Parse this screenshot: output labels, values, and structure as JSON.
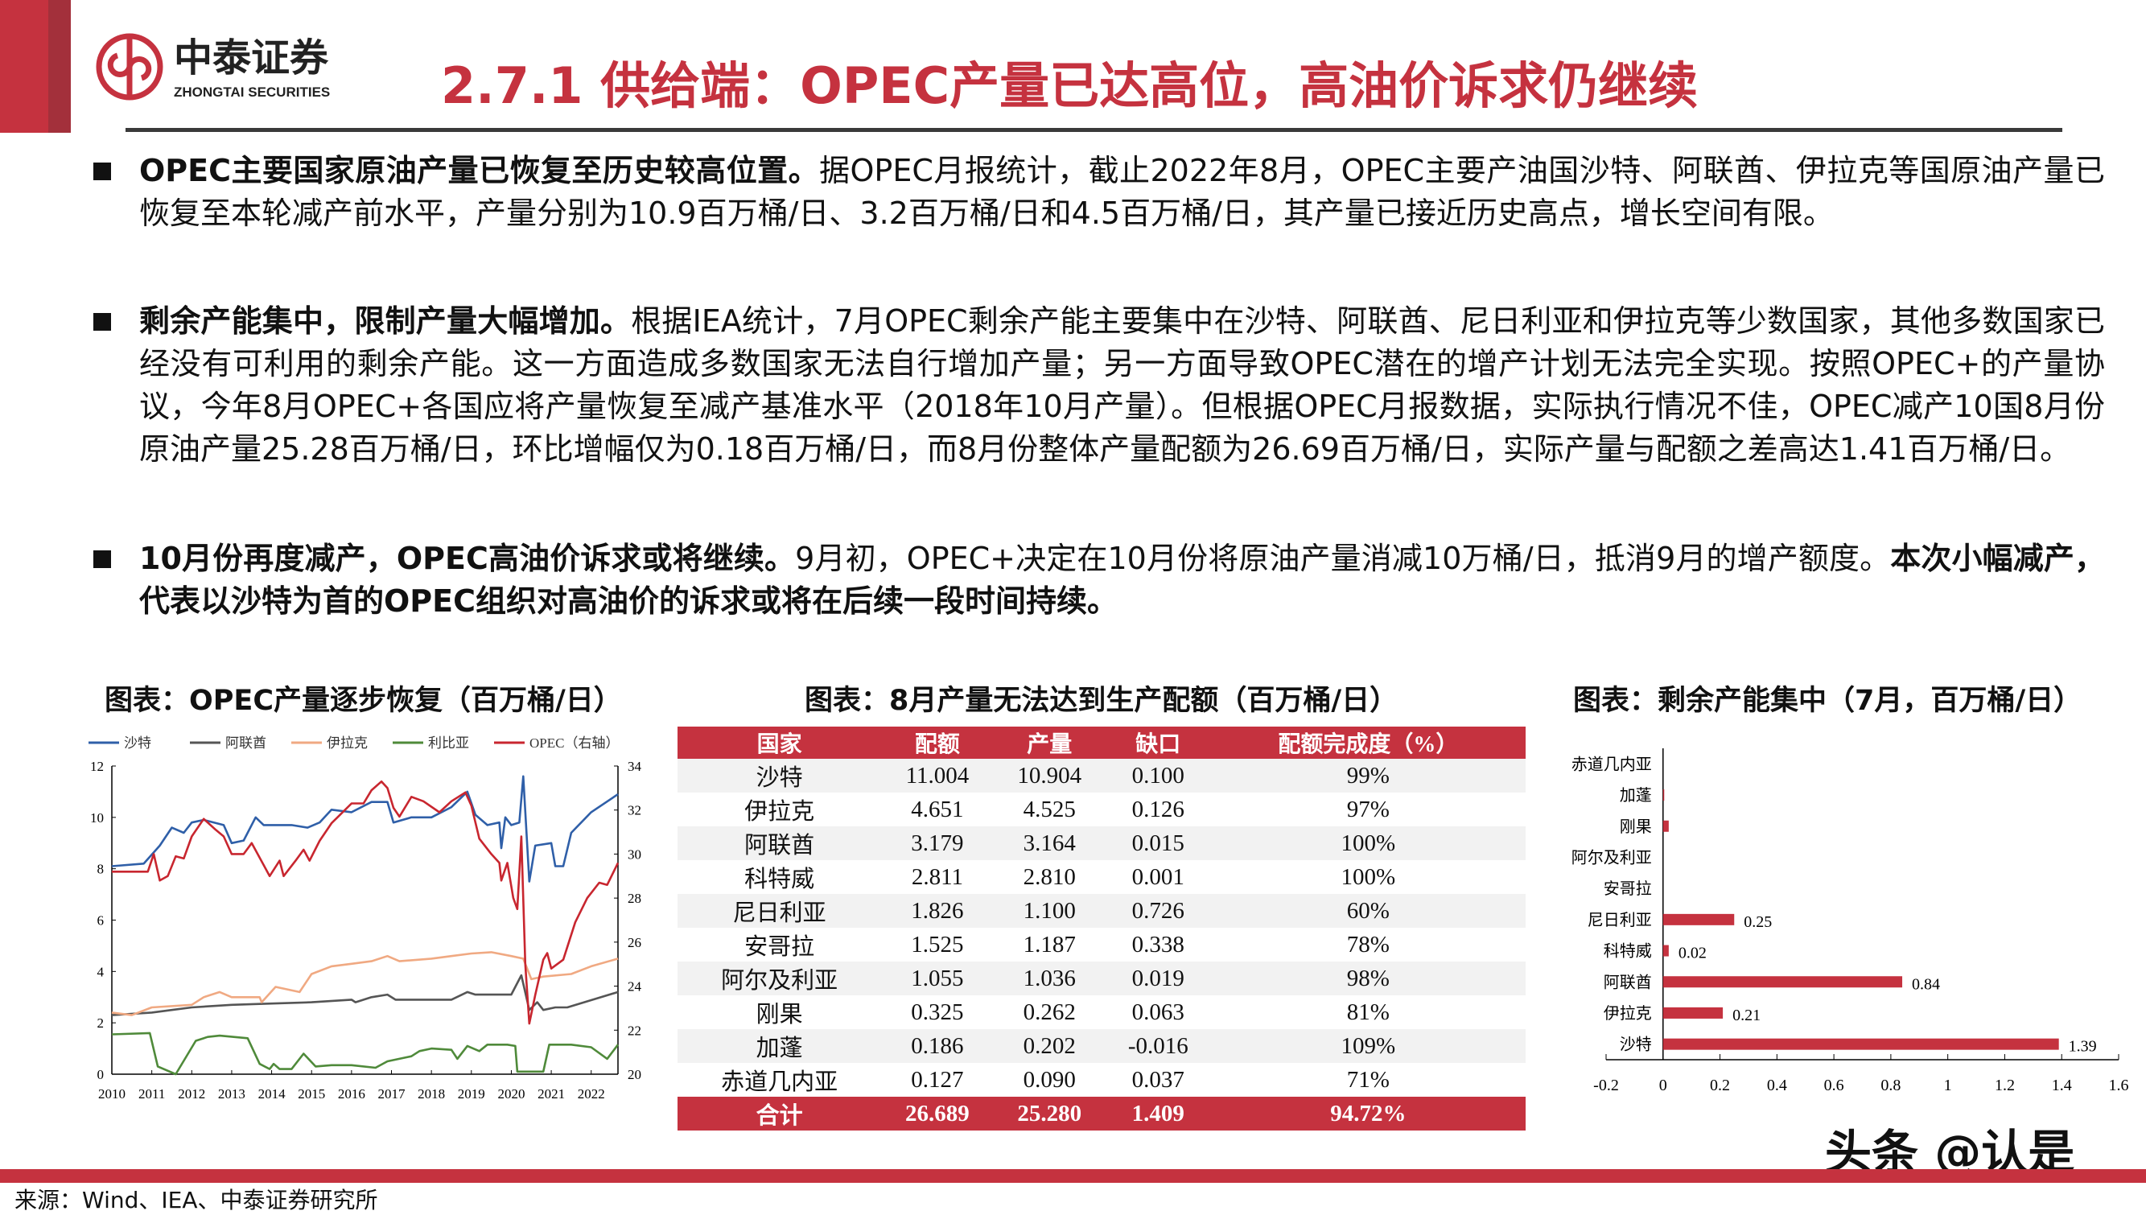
{
  "brand": {
    "name_cn": "中泰证券",
    "name_en": "ZHONGTAI SECURITIES",
    "color": "#c5323f"
  },
  "title": "2.7.1 供给端：OPEC产量已达高位，高油价诉求仍继续",
  "bullets": [
    {
      "lead": "OPEC主要国家原油产量已恢复至历史较高位置。",
      "body": "据OPEC月报统计，截止2022年8月，OPEC主要产油国沙特、阿联酋、伊拉克等国原油产量已恢复至本轮减产前水平，产量分别为10.9百万桶/日、3.2百万桶/日和4.5百万桶/日，其产量已接近历史高点，增长空间有限。"
    },
    {
      "lead": "剩余产能集中，限制产量大幅增加。",
      "body": "根据IEA统计，7月OPEC剩余产能主要集中在沙特、阿联酋、尼日利亚和伊拉克等少数国家，其他多数国家已经没有可利用的剩余产能。这一方面造成多数国家无法自行增加产量；另一方面导致OPEC潜在的增产计划无法完全实现。按照OPEC+的产量协议，今年8月OPEC+各国应将产量恢复至减产基准水平（2018年10月产量）。但根据OPEC月报数据，实际执行情况不佳，OPEC减产10国8月份原油产量25.28百万桶/日，环比增幅仅为0.18百万桶/日，而8月份整体产量配额为26.69百万桶/日，实际产量与配额之差高达1.41百万桶/日。"
    },
    {
      "lead": "10月份再度减产，OPEC高油价诉求或将继续。",
      "body": "9月初，OPEC+决定在10月份将原油产量消减10万桶/日，抵消9月的增产额度。",
      "tail": "本次小幅减产，代表以沙特为首的OPEC组织对高油价的诉求或将在后续一段时间持续。"
    }
  ],
  "chart_titles": [
    "图表：OPEC产量逐步恢复（百万桶/日）",
    "图表：8月产量无法达到生产配额（百万桶/日）",
    "图表：剩余产能集中（7月，百万桶/日）"
  ],
  "chart_data": [
    {
      "type": "line",
      "xlim": [
        2010,
        2022.67
      ],
      "ylim": [
        0,
        12
      ],
      "y2lim": [
        20,
        34
      ],
      "xticks": [
        "2010",
        "2011",
        "2012",
        "2013",
        "2014",
        "2015",
        "2016",
        "2017",
        "2018",
        "2019",
        "2020",
        "2021",
        "2022"
      ],
      "yticks": [
        "0",
        "2",
        "4",
        "6",
        "8",
        "10",
        "12"
      ],
      "y2ticks": [
        "20",
        "22",
        "24",
        "26",
        "28",
        "30",
        "32",
        "34"
      ],
      "legend": "top",
      "series": [
        {
          "name": "沙特",
          "color": "#2f5fa8",
          "axis": "left",
          "points": [
            [
              2010,
              8.1
            ],
            [
              2010.8,
              8.2
            ],
            [
              2011.2,
              8.9
            ],
            [
              2011.5,
              9.6
            ],
            [
              2011.8,
              9.4
            ],
            [
              2012,
              9.8
            ],
            [
              2012.3,
              9.9
            ],
            [
              2012.8,
              9.7
            ],
            [
              2013,
              9.0
            ],
            [
              2013.3,
              9.1
            ],
            [
              2013.6,
              10.0
            ],
            [
              2013.8,
              9.7
            ],
            [
              2014.2,
              9.7
            ],
            [
              2014.5,
              9.7
            ],
            [
              2014.9,
              9.6
            ],
            [
              2015.2,
              9.8
            ],
            [
              2015.5,
              10.3
            ],
            [
              2016,
              10.2
            ],
            [
              2016.5,
              10.6
            ],
            [
              2016.9,
              10.6
            ],
            [
              2017.05,
              9.8
            ],
            [
              2017.5,
              10.0
            ],
            [
              2018,
              10.0
            ],
            [
              2018.5,
              10.4
            ],
            [
              2018.9,
              11.0
            ],
            [
              2019.1,
              10.1
            ],
            [
              2019.4,
              9.7
            ],
            [
              2019.7,
              9.8
            ],
            [
              2019.75,
              8.8
            ],
            [
              2019.85,
              10.0
            ],
            [
              2020,
              9.7
            ],
            [
              2020.2,
              9.8
            ],
            [
              2020.3,
              11.6
            ],
            [
              2020.45,
              7.5
            ],
            [
              2020.6,
              8.9
            ],
            [
              2021,
              9.0
            ],
            [
              2021.1,
              8.1
            ],
            [
              2021.3,
              8.1
            ],
            [
              2021.5,
              9.4
            ],
            [
              2022,
              10.2
            ],
            [
              2022.67,
              10.9
            ]
          ]
        },
        {
          "name": "阿联酋",
          "color": "#555555",
          "axis": "left",
          "points": [
            [
              2010,
              2.3
            ],
            [
              2011,
              2.4
            ],
            [
              2011.5,
              2.5
            ],
            [
              2012,
              2.6
            ],
            [
              2013,
              2.7
            ],
            [
              2014,
              2.75
            ],
            [
              2015,
              2.8
            ],
            [
              2016,
              2.9
            ],
            [
              2016.1,
              2.8
            ],
            [
              2016.5,
              3.0
            ],
            [
              2016.9,
              3.1
            ],
            [
              2017.1,
              2.9
            ],
            [
              2018,
              2.9
            ],
            [
              2018.5,
              2.9
            ],
            [
              2018.9,
              3.2
            ],
            [
              2019.1,
              3.1
            ],
            [
              2020,
              3.1
            ],
            [
              2020.25,
              3.85
            ],
            [
              2020.45,
              2.5
            ],
            [
              2020.65,
              2.8
            ],
            [
              2020.8,
              2.5
            ],
            [
              2021.1,
              2.6
            ],
            [
              2021.4,
              2.6
            ],
            [
              2022.67,
              3.2
            ]
          ]
        },
        {
          "name": "伊拉克",
          "color": "#f0a982",
          "axis": "left",
          "points": [
            [
              2010,
              2.4
            ],
            [
              2010.5,
              2.3
            ],
            [
              2011,
              2.6
            ],
            [
              2012,
              2.7
            ],
            [
              2012.3,
              3.0
            ],
            [
              2012.7,
              3.2
            ],
            [
              2013,
              3.0
            ],
            [
              2013.7,
              3.0
            ],
            [
              2013.75,
              2.8
            ],
            [
              2014.1,
              3.4
            ],
            [
              2014.7,
              3.2
            ],
            [
              2015,
              3.9
            ],
            [
              2015.5,
              4.2
            ],
            [
              2016,
              4.3
            ],
            [
              2016.5,
              4.4
            ],
            [
              2016.9,
              4.6
            ],
            [
              2017.2,
              4.4
            ],
            [
              2018,
              4.5
            ],
            [
              2018.5,
              4.6
            ],
            [
              2019,
              4.7
            ],
            [
              2019.5,
              4.75
            ],
            [
              2020,
              4.6
            ],
            [
              2020.3,
              4.5
            ],
            [
              2020.5,
              3.7
            ],
            [
              2020.8,
              3.8
            ],
            [
              2021.5,
              3.9
            ],
            [
              2022,
              4.2
            ],
            [
              2022.67,
              4.5
            ]
          ]
        },
        {
          "name": "利比亚",
          "color": "#4f8a3a",
          "axis": "left",
          "points": [
            [
              2010,
              1.55
            ],
            [
              2010.95,
              1.6
            ],
            [
              2011.15,
              0.3
            ],
            [
              2011.6,
              0.0
            ],
            [
              2012.1,
              1.3
            ],
            [
              2012.4,
              1.45
            ],
            [
              2012.7,
              1.5
            ],
            [
              2013.4,
              1.4
            ],
            [
              2013.7,
              0.4
            ],
            [
              2013.95,
              0.2
            ],
            [
              2014.05,
              0.4
            ],
            [
              2014.2,
              0.2
            ],
            [
              2014.5,
              0.2
            ],
            [
              2014.8,
              0.8
            ],
            [
              2015.1,
              0.3
            ],
            [
              2015.5,
              0.35
            ],
            [
              2016,
              0.35
            ],
            [
              2016.6,
              0.25
            ],
            [
              2016.9,
              0.5
            ],
            [
              2017.5,
              0.7
            ],
            [
              2017.7,
              0.9
            ],
            [
              2018,
              1.0
            ],
            [
              2018.5,
              0.95
            ],
            [
              2018.65,
              0.6
            ],
            [
              2018.9,
              1.1
            ],
            [
              2019.2,
              0.9
            ],
            [
              2019.4,
              1.15
            ],
            [
              2019.9,
              1.15
            ],
            [
              2020.1,
              1.1
            ],
            [
              2020.15,
              0.1
            ],
            [
              2020.8,
              0.1
            ],
            [
              2020.95,
              1.15
            ],
            [
              2021.5,
              1.15
            ],
            [
              2022,
              1.05
            ],
            [
              2022.4,
              0.6
            ],
            [
              2022.67,
              1.15
            ]
          ]
        },
        {
          "name": "OPEC（右轴）",
          "color": "#c8262f",
          "axis": "right",
          "points": [
            [
              2010,
              29.2
            ],
            [
              2010.9,
              29.2
            ],
            [
              2011.05,
              30.0
            ],
            [
              2011.2,
              28.8
            ],
            [
              2011.4,
              29.0
            ],
            [
              2011.6,
              29.9
            ],
            [
              2011.8,
              29.8
            ],
            [
              2012,
              30.8
            ],
            [
              2012.3,
              31.6
            ],
            [
              2012.6,
              31.1
            ],
            [
              2012.8,
              30.8
            ],
            [
              2013,
              30.0
            ],
            [
              2013.3,
              30.0
            ],
            [
              2013.5,
              30.5
            ],
            [
              2013.8,
              29.5
            ],
            [
              2013.95,
              29.0
            ],
            [
              2014.2,
              29.7
            ],
            [
              2014.3,
              29.0
            ],
            [
              2014.6,
              29.7
            ],
            [
              2014.8,
              30.2
            ],
            [
              2014.95,
              29.7
            ],
            [
              2015.2,
              30.6
            ],
            [
              2015.5,
              31.4
            ],
            [
              2016,
              32.3
            ],
            [
              2016.3,
              32.3
            ],
            [
              2016.5,
              32.9
            ],
            [
              2016.75,
              33.3
            ],
            [
              2016.9,
              33.0
            ],
            [
              2017.05,
              32.1
            ],
            [
              2017.2,
              31.7
            ],
            [
              2017.5,
              32.6
            ],
            [
              2017.8,
              32.4
            ],
            [
              2018.2,
              31.9
            ],
            [
              2018.5,
              32.4
            ],
            [
              2018.85,
              32.8
            ],
            [
              2019.0,
              32.2
            ],
            [
              2019.2,
              30.7
            ],
            [
              2019.5,
              30.0
            ],
            [
              2019.7,
              29.6
            ],
            [
              2019.75,
              28.8
            ],
            [
              2019.9,
              29.6
            ],
            [
              2020.05,
              28.0
            ],
            [
              2020.15,
              27.5
            ],
            [
              2020.25,
              30.8
            ],
            [
              2020.35,
              25.0
            ],
            [
              2020.45,
              22.3
            ],
            [
              2020.6,
              23.6
            ],
            [
              2020.8,
              25.2
            ],
            [
              2020.9,
              25.5
            ],
            [
              2021.0,
              24.8
            ],
            [
              2021.3,
              25.2
            ],
            [
              2021.6,
              26.9
            ],
            [
              2021.9,
              28.0
            ],
            [
              2022.2,
              28.7
            ],
            [
              2022.4,
              28.6
            ],
            [
              2022.67,
              29.6
            ]
          ]
        }
      ]
    },
    {
      "type": "table",
      "columns": [
        "国家",
        "配额",
        "产量",
        "缺口",
        "配额完成度（%）"
      ],
      "rows": [
        [
          "沙特",
          "11.004",
          "10.904",
          "0.100",
          "99%"
        ],
        [
          "伊拉克",
          "4.651",
          "4.525",
          "0.126",
          "97%"
        ],
        [
          "阿联酋",
          "3.179",
          "3.164",
          "0.015",
          "100%"
        ],
        [
          "科特威",
          "2.811",
          "2.810",
          "0.001",
          "100%"
        ],
        [
          "尼日利亚",
          "1.826",
          "1.100",
          "0.726",
          "60%"
        ],
        [
          "安哥拉",
          "1.525",
          "1.187",
          "0.338",
          "78%"
        ],
        [
          "阿尔及利亚",
          "1.055",
          "1.036",
          "0.019",
          "98%"
        ],
        [
          "刚果",
          "0.325",
          "0.262",
          "0.063",
          "81%"
        ],
        [
          "加蓬",
          "0.186",
          "0.202",
          "-0.016",
          "109%"
        ],
        [
          "赤道几内亚",
          "0.127",
          "0.090",
          "0.037",
          "71%"
        ]
      ],
      "total": [
        "合计",
        "26.689",
        "25.280",
        "1.409",
        "94.72%"
      ],
      "header_color": "#c5323f"
    },
    {
      "type": "bar",
      "orientation": "horizontal",
      "color": "#c5323f",
      "xlim": [
        -0.2,
        1.6
      ],
      "xticks": [
        "-0.2",
        "0",
        "0.2",
        "0.4",
        "0.6",
        "0.8",
        "1",
        "1.2",
        "1.4",
        "1.6"
      ],
      "categories": [
        "赤道几内亚",
        "加蓬",
        "刚果",
        "阿尔及利亚",
        "安哥拉",
        "尼日利亚",
        "科特威",
        "阿联酋",
        "伊拉克",
        "沙特"
      ],
      "values": [
        0,
        0.003,
        0.02,
        0,
        0,
        0.25,
        0.02,
        0.84,
        0.21,
        1.39
      ],
      "labels": [
        "",
        "",
        "",
        "",
        "",
        "0.25",
        "0.02",
        "0.84",
        "0.21",
        "1.39"
      ]
    }
  ],
  "source": "来源：Wind、IEA、中泰证券研究所",
  "watermark": "头条 @认是"
}
